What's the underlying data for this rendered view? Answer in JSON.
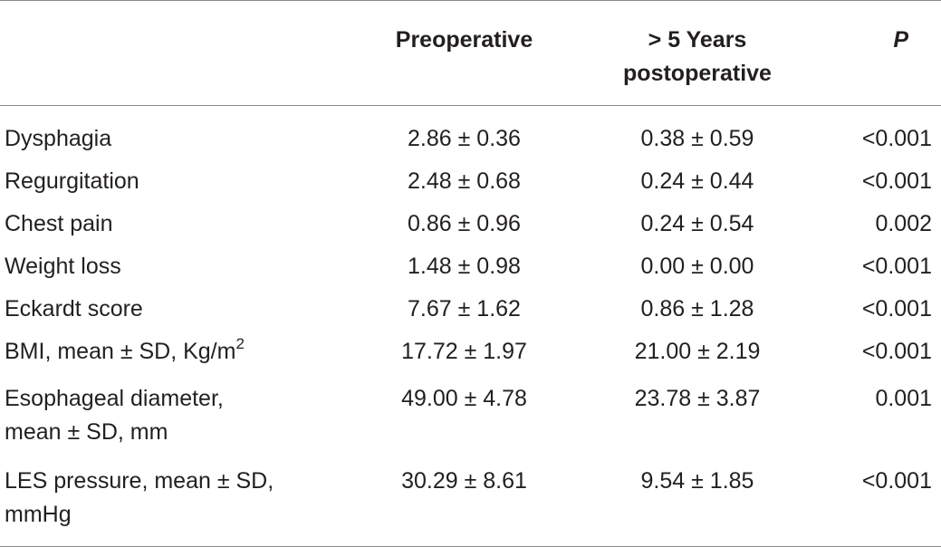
{
  "header": {
    "col0": "",
    "col1": "Preoperative",
    "col2_line1": "> 5 Years",
    "col2_line2": "postoperative",
    "col3": "P"
  },
  "rows": [
    {
      "label": "Dysphagia",
      "pre": "2.86 ± 0.36",
      "post": "0.38 ± 0.59",
      "p": "<0.001"
    },
    {
      "label": "Regurgitation",
      "pre": "2.48 ± 0.68",
      "post": "0.24 ± 0.44",
      "p": "<0.001"
    },
    {
      "label": "Chest pain",
      "pre": "0.86 ± 0.96",
      "post": "0.24 ± 0.54",
      "p": "0.002"
    },
    {
      "label": "Weight loss",
      "pre": "1.48 ± 0.98",
      "post": "0.00 ± 0.00",
      "p": "<0.001"
    },
    {
      "label": "Eckardt score",
      "pre": "7.67 ± 1.62",
      "post": "0.86 ± 1.28",
      "p": "<0.001"
    },
    {
      "label": "BMI, mean ± SD, Kg/m",
      "label_sup": "2",
      "pre": "17.72 ± 1.97",
      "post": "21.00 ± 2.19",
      "p": "<0.001"
    },
    {
      "label_line1": "Esophageal diameter,",
      "label_line2": "mean ± SD, mm",
      "pre": "49.00 ± 4.78",
      "post": "23.78 ± 3.87",
      "p": "0.001"
    },
    {
      "label_line1": "LES pressure, mean ± SD,",
      "label_line2": "mmHg",
      "pre": "30.29 ± 8.61",
      "post": "9.54 ± 1.85",
      "p": "<0.001"
    }
  ]
}
